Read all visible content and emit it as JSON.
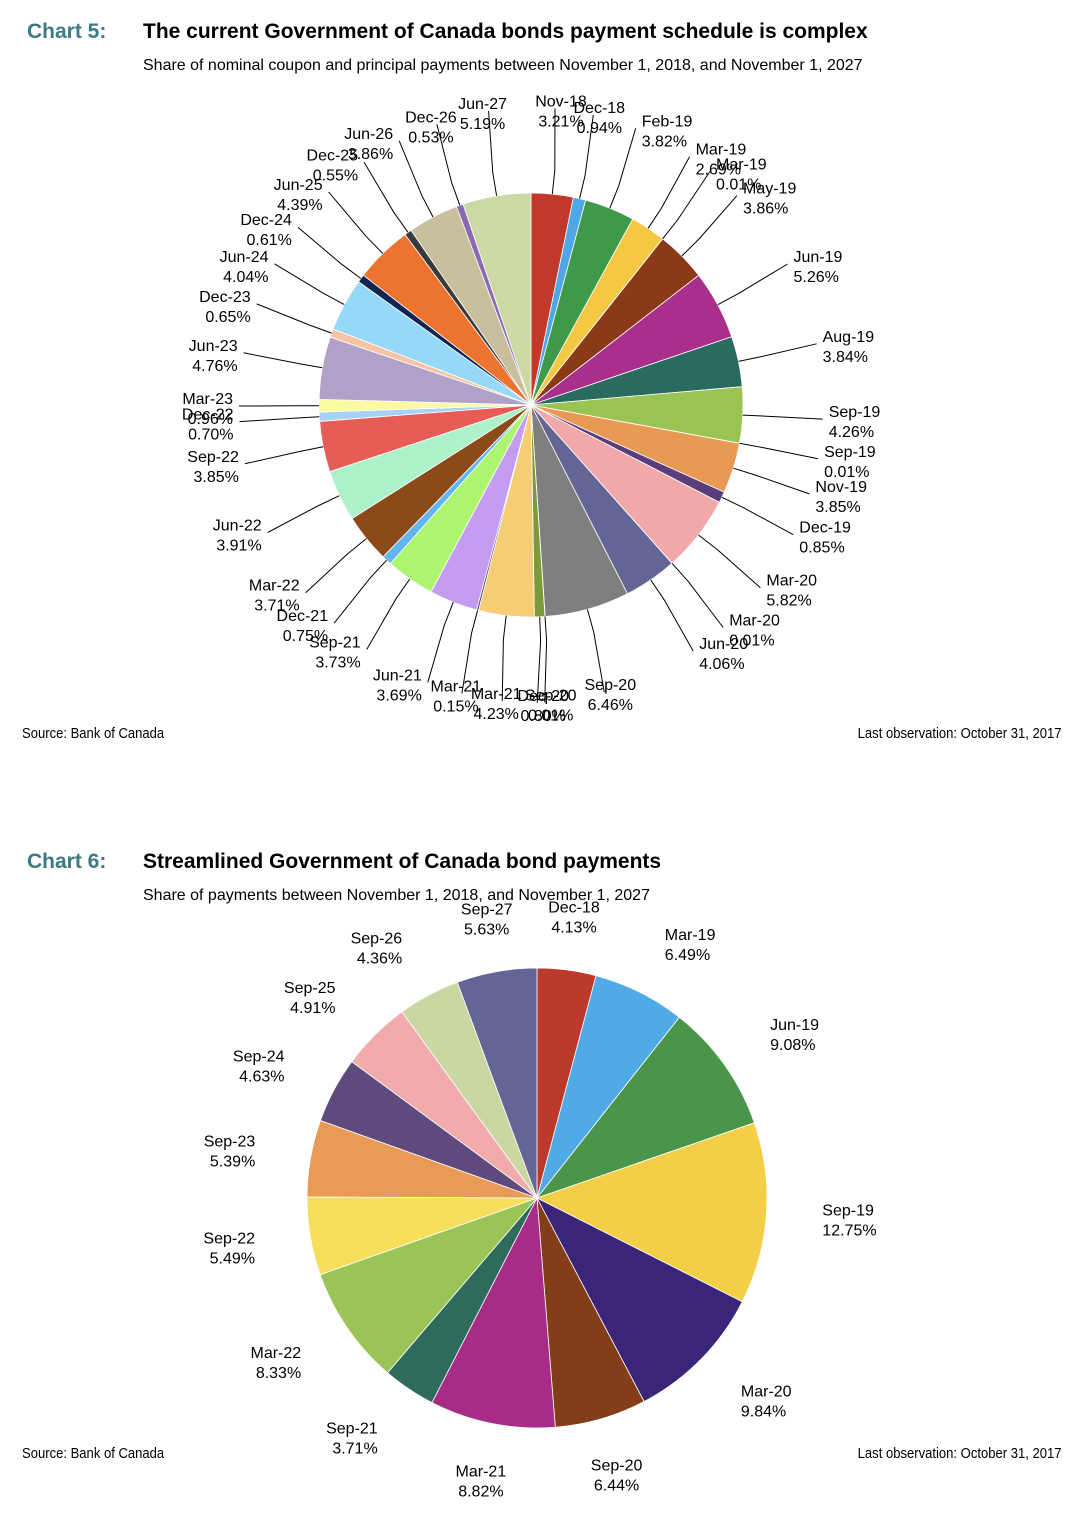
{
  "chart5": {
    "number": "Chart 5:",
    "title": "The current Government of Canada bonds payment schedule is complex",
    "subtitle": "Share of nominal coupon and principal payments between November 1, 2018, and November 1, 2027",
    "source": "Source: Bank of Canada",
    "last_observation": "Last observation: October 31, 2017"
  },
  "chart6": {
    "number": "Chart 6:",
    "title": "Streamlined Government of Canada bond payments",
    "subtitle": "Share of payments between November 1, 2018, and November 1, 2027",
    "source": "Source: Bank of Canada",
    "last_observation": "Last observation: October 31, 2017"
  },
  "chart_data": [
    {
      "type": "pie",
      "title": "The current Government of Canada bonds payment schedule is complex",
      "start": "12 o'clock, clockwise",
      "slices": [
        {
          "label": "Nov-18",
          "pct": "3.21%",
          "value": 3.21,
          "color": "#c0392b"
        },
        {
          "label": "Dec-18",
          "pct": "0.94%",
          "value": 0.94,
          "color": "#4ea8e6"
        },
        {
          "label": "Feb-19",
          "pct": "3.82%",
          "value": 3.82,
          "color": "#3e9a4a"
        },
        {
          "label": "Mar-19",
          "pct": "2.69%",
          "value": 2.69,
          "color": "#f4c842"
        },
        {
          "label": "Mar-19",
          "pct": "0.01%",
          "value": 0.01,
          "color": "#7a3a1a"
        },
        {
          "label": "May-19",
          "pct": "3.86%",
          "value": 3.86,
          "color": "#8b3a17"
        },
        {
          "label": "Jun-19",
          "pct": "5.26%",
          "value": 5.26,
          "color": "#a8308c"
        },
        {
          "label": "Aug-19",
          "pct": "3.84%",
          "value": 3.84,
          "color": "#2a6b5f"
        },
        {
          "label": "Sep-19",
          "pct": "4.26%",
          "value": 4.26,
          "color": "#99c454"
        },
        {
          "label": "Sep-19",
          "pct": "0.01%",
          "value": 0.01,
          "color": "#e8a07a"
        },
        {
          "label": "Nov-19",
          "pct": "3.85%",
          "value": 3.85,
          "color": "#e89a55"
        },
        {
          "label": "Dec-19",
          "pct": "0.85%",
          "value": 0.85,
          "color": "#5a3d7a"
        },
        {
          "label": "Mar-20",
          "pct": "5.82%",
          "value": 5.82,
          "color": "#f0a8a8"
        },
        {
          "label": "Mar-20",
          "pct": "0.01%",
          "value": 0.01,
          "color": "#7f7fa8"
        },
        {
          "label": "Jun-20",
          "pct": "4.06%",
          "value": 4.06,
          "color": "#636595"
        },
        {
          "label": "Sep-20",
          "pct": "6.46%",
          "value": 6.46,
          "color": "#7f7f7f"
        },
        {
          "label": "Sep-20",
          "pct": "0.01%",
          "value": 0.01,
          "color": "#9aa060"
        },
        {
          "label": "Dec-20",
          "pct": "0.80%",
          "value": 0.8,
          "color": "#7c9a3a"
        },
        {
          "label": "Mar-21",
          "pct": "4.23%",
          "value": 4.23,
          "color": "#f6cc74"
        },
        {
          "label": "Mar-21",
          "pct": "0.15%",
          "value": 0.15,
          "color": "#4a3a8a"
        },
        {
          "label": "Jun-21",
          "pct": "3.69%",
          "value": 3.69,
          "color": "#c49cf0"
        },
        {
          "label": "Sep-21",
          "pct": "3.73%",
          "value": 3.73,
          "color": "#adf56e"
        },
        {
          "label": "Dec-21",
          "pct": "0.75%",
          "value": 0.75,
          "color": "#63b5f0"
        },
        {
          "label": "Mar-22",
          "pct": "3.71%",
          "value": 3.71,
          "color": "#8b4a18"
        },
        {
          "label": "Jun-22",
          "pct": "3.91%",
          "value": 3.91,
          "color": "#aef2cc"
        },
        {
          "label": "Sep-22",
          "pct": "3.85%",
          "value": 3.85,
          "color": "#e85c58"
        },
        {
          "label": "Dec-22",
          "pct": "0.70%",
          "value": 0.7,
          "color": "#a8d2f4"
        },
        {
          "label": "Mar-23",
          "pct": "0.96%",
          "value": 0.96,
          "color": "#fafaa0"
        },
        {
          "label": "Jun-23",
          "pct": "4.76%",
          "value": 4.76,
          "color": "#b1a0c8"
        },
        {
          "label": "Dec-23",
          "pct": "0.65%",
          "value": 0.65,
          "color": "#f6c4a4"
        },
        {
          "label": "Jun-24",
          "pct": "4.04%",
          "value": 4.04,
          "color": "#96d8f8"
        },
        {
          "label": "Dec-24",
          "pct": "0.61%",
          "value": 0.61,
          "color": "#10254f"
        },
        {
          "label": "Jun-25",
          "pct": "4.39%",
          "value": 4.39,
          "color": "#ed7430"
        },
        {
          "label": "Dec-25",
          "pct": "0.55%",
          "value": 0.55,
          "color": "#3a3a3a"
        },
        {
          "label": "Jun-26",
          "pct": "3.86%",
          "value": 3.86,
          "color": "#c8bf9e"
        },
        {
          "label": "Dec-26",
          "pct": "0.53%",
          "value": 0.53,
          "color": "#8a6ab0"
        },
        {
          "label": "Jun-27",
          "pct": "5.19%",
          "value": 5.19,
          "color": "#cdd9a4"
        }
      ]
    },
    {
      "type": "pie",
      "title": "Streamlined Government of Canada bond payments",
      "start": "12 o'clock, clockwise",
      "slices": [
        {
          "label": "Dec-18",
          "pct": "4.13%",
          "value": 4.13,
          "color": "#bb3a2b"
        },
        {
          "label": "Mar-19",
          "pct": "6.49%",
          "value": 6.49,
          "color": "#50aae8"
        },
        {
          "label": "Jun-19",
          "pct": "9.08%",
          "value": 9.08,
          "color": "#4a954a"
        },
        {
          "label": "Sep-19",
          "pct": "12.75%",
          "value": 12.75,
          "color": "#f5ce48"
        },
        {
          "label": "Mar-20",
          "pct": "9.84%",
          "value": 9.84,
          "color": "#3b2578"
        },
        {
          "label": "Sep-20",
          "pct": "6.44%",
          "value": 6.44,
          "color": "#833d18"
        },
        {
          "label": "Mar-21",
          "pct": "8.82%",
          "value": 8.82,
          "color": "#a82b88"
        },
        {
          "label": "Sep-21",
          "pct": "3.71%",
          "value": 3.71,
          "color": "#2e6b5c"
        },
        {
          "label": "Mar-22",
          "pct": "8.33%",
          "value": 8.33,
          "color": "#9ac556"
        },
        {
          "label": "Sep-22",
          "pct": "5.49%",
          "value": 5.49,
          "color": "#f6df5c"
        },
        {
          "label": "Sep-23",
          "pct": "5.39%",
          "value": 5.39,
          "color": "#e89a57"
        },
        {
          "label": "Sep-24",
          "pct": "4.63%",
          "value": 4.63,
          "color": "#5e4a7c"
        },
        {
          "label": "Sep-25",
          "pct": "4.91%",
          "value": 4.91,
          "color": "#f1abab"
        },
        {
          "label": "Sep-26",
          "pct": "4.36%",
          "value": 4.36,
          "color": "#c9d7a2"
        },
        {
          "label": "Sep-27",
          "pct": "5.63%",
          "value": 5.63,
          "color": "#646594"
        }
      ]
    }
  ]
}
